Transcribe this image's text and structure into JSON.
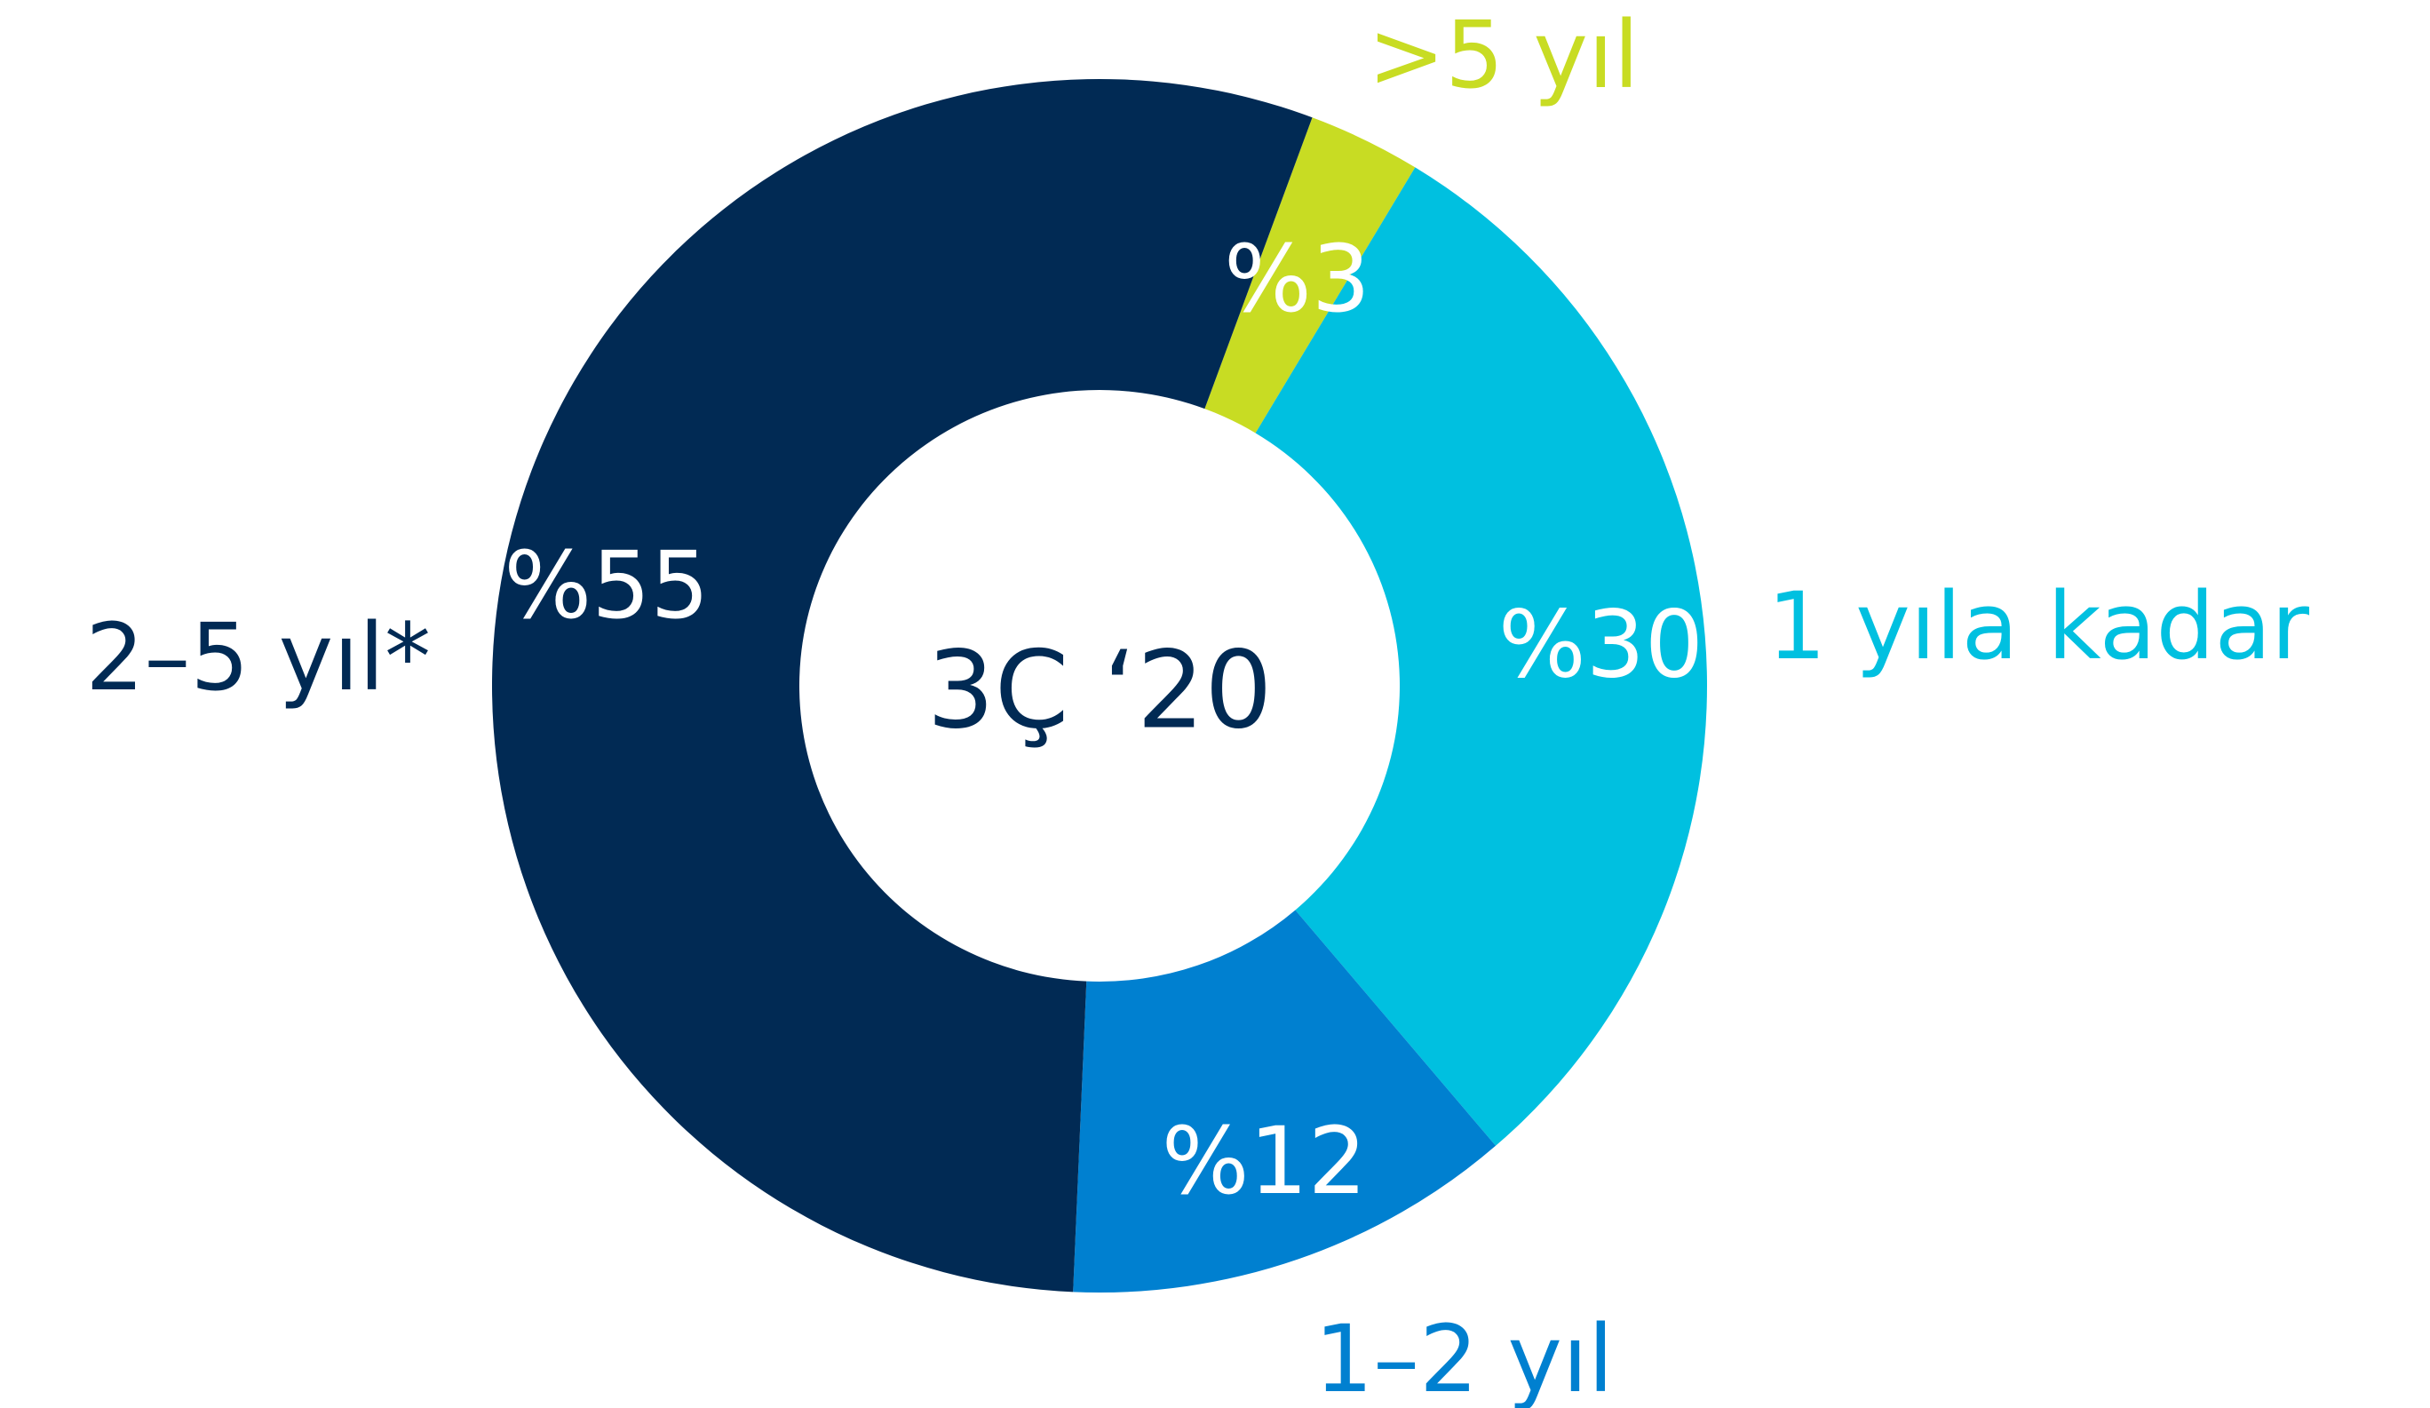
{
  "chart_data": {
    "type": "pie",
    "subtype": "donut",
    "center_label": "3Ç ‘20",
    "slices": [
      {
        "category": ">5 yıl",
        "label": "%3",
        "value": 3,
        "color": "#c8dc23"
      },
      {
        "category": "1 yıla kadar",
        "label": "%30",
        "value": 30,
        "color": "#00c0e0"
      },
      {
        "category": "1–2 yıl",
        "label": "%12",
        "value": 12,
        "color": "#0080d0"
      },
      {
        "category": "2–5 yıl*",
        "label": "%55",
        "value": 55,
        "color": "#012a54"
      }
    ]
  }
}
